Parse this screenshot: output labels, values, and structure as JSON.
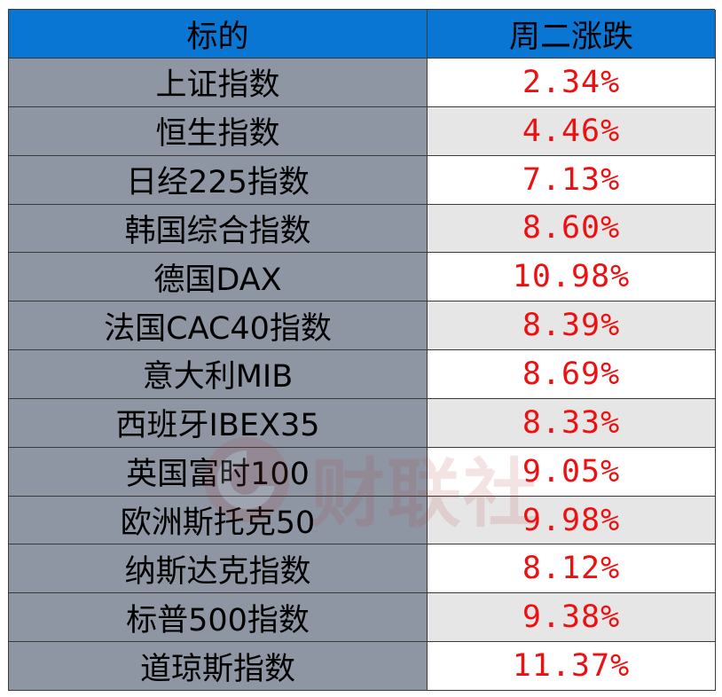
{
  "table": {
    "header": {
      "col1": "标的",
      "col2": "周二涨跌"
    },
    "rows": [
      {
        "name": "上证指数",
        "value": "2.34%"
      },
      {
        "name": "恒生指数",
        "value": "4.46%"
      },
      {
        "name": "日经225指数",
        "value": "7.13%"
      },
      {
        "name": "韩国综合指数",
        "value": "8.60%"
      },
      {
        "name": "德国DAX",
        "value": "10.98%"
      },
      {
        "name": "法国CAC40指数",
        "value": "8.39%"
      },
      {
        "name": "意大利MIB",
        "value": "8.69%"
      },
      {
        "name": "西班牙IBEX35",
        "value": "8.33%"
      },
      {
        "name": "英国富时100",
        "value": "9.05%"
      },
      {
        "name": "欧洲斯托克50",
        "value": "9.98%"
      },
      {
        "name": "纳斯达克指数",
        "value": "8.12%"
      },
      {
        "name": "标普500指数",
        "value": "9.38%"
      },
      {
        "name": "道琼斯指数",
        "value": "11.37%"
      }
    ]
  },
  "watermark": {
    "text": "财联社"
  },
  "colors": {
    "header_bg": "#0a76d4",
    "name_bg": "#8e96a4",
    "value_text": "#ee1010",
    "alt_row_bg": "#e6e6e6"
  }
}
